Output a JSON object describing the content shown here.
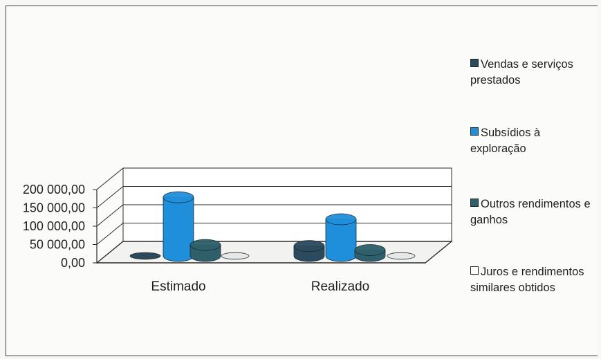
{
  "chart_data": {
    "type": "bar",
    "style": "3d-cylinder",
    "categories": [
      "Estimado",
      "Realizado"
    ],
    "series": [
      {
        "name": "Vendas e serviços prestados",
        "values": [
          0,
          27000
        ],
        "color": "#2b4a5e"
      },
      {
        "name": "Subsídios à exploração",
        "values": [
          160000,
          100000
        ],
        "color": "#1f8fdc"
      },
      {
        "name": "Outros rendimentos e ganhos",
        "values": [
          30000,
          16000
        ],
        "color": "#2e5f6a"
      },
      {
        "name": "Juros e rendimentos similares obtidos",
        "values": [
          0,
          0
        ],
        "color": "#ffffff"
      }
    ],
    "yticks": [
      "200 000,00",
      "150 000,00",
      "100 000,00",
      "50 000,00",
      "0,00"
    ],
    "ylim": [
      0,
      200000
    ],
    "grid": true,
    "legend_position": "right",
    "title": "",
    "xlabel": "",
    "ylabel": ""
  }
}
